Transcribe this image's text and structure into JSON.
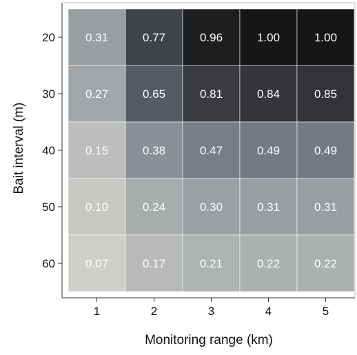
{
  "chart_data": {
    "type": "heatmap",
    "xlabel": "Monitoring range (km)",
    "ylabel": "Bait interval (m)",
    "x_categories": [
      "1",
      "2",
      "3",
      "4",
      "5"
    ],
    "y_categories": [
      "20",
      "30",
      "40",
      "50",
      "60"
    ],
    "values": [
      [
        0.31,
        0.77,
        0.96,
        1.0,
        1.0
      ],
      [
        0.27,
        0.65,
        0.81,
        0.84,
        0.85
      ],
      [
        0.15,
        0.38,
        0.47,
        0.49,
        0.49
      ],
      [
        0.1,
        0.24,
        0.3,
        0.31,
        0.31
      ],
      [
        0.07,
        0.17,
        0.21,
        0.22,
        0.22
      ]
    ],
    "cell_labels": [
      [
        "0.31",
        "0.77",
        "0.96",
        "1.00",
        "1.00"
      ],
      [
        "0.27",
        "0.65",
        "0.81",
        "0.84",
        "0.85"
      ],
      [
        "0.15",
        "0.38",
        "0.47",
        "0.49",
        "0.49"
      ],
      [
        "0.10",
        "0.24",
        "0.30",
        "0.31",
        "0.31"
      ],
      [
        "0.07",
        "0.17",
        "0.21",
        "0.22",
        "0.22"
      ]
    ],
    "value_range": [
      0,
      1
    ],
    "colormap": {
      "low": "#dcddd4",
      "mid": "#727782",
      "high": "#161616"
    },
    "grid": false,
    "legend": "none"
  }
}
